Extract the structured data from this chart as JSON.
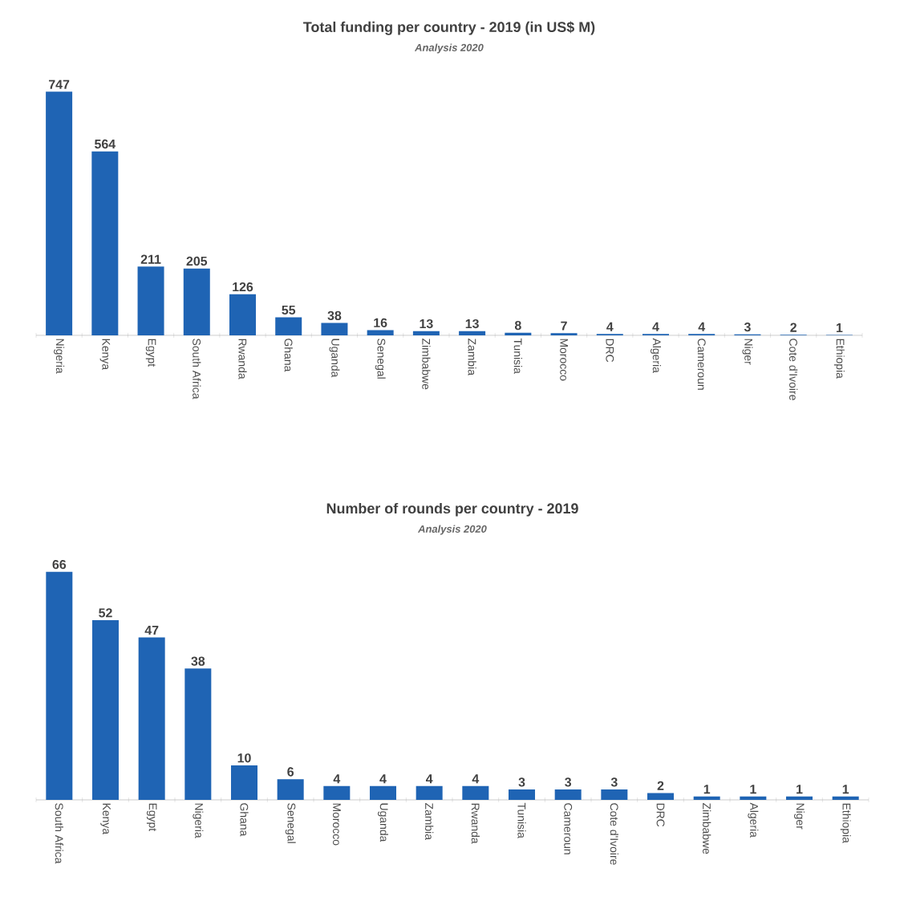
{
  "chart_data": [
    {
      "type": "bar",
      "title": "Total funding per country - 2019 (in US$ M)",
      "subtitle": "Analysis 2020",
      "categories": [
        "Nigeria",
        "Kenya",
        "Egypt",
        "South Africa",
        "Rwanda",
        "Ghana",
        "Uganda",
        "Senegal",
        "Zimbabwe",
        "Zambia",
        "Tunisia",
        "Morocco",
        "DRC",
        "Algeria",
        "Cameroun",
        "Niger",
        "Cote d'Ivoire",
        "Ethiopia"
      ],
      "values": [
        747,
        564,
        211,
        205,
        126,
        55,
        38,
        16,
        13,
        13,
        8,
        7,
        4,
        4,
        4,
        3,
        2,
        1
      ],
      "color": "#1f64b4",
      "data_labels": true
    },
    {
      "type": "bar",
      "title": "Number of rounds per country - 2019",
      "subtitle": "Analysis 2020",
      "categories": [
        "South Africa",
        "Kenya",
        "Egypt",
        "Nigeria",
        "Ghana",
        "Senegal",
        "Morocco",
        "Uganda",
        "Zambia",
        "Rwanda",
        "Tunisia",
        "Cameroun",
        "Cote d'Ivoire",
        "DRC",
        "Zimbabwe",
        "Algeria",
        "Niger",
        "Ethiopia"
      ],
      "values": [
        66,
        52,
        47,
        38,
        10,
        6,
        4,
        4,
        4,
        4,
        3,
        3,
        3,
        2,
        1,
        1,
        1,
        1
      ],
      "color": "#1f64b4",
      "data_labels": true
    }
  ]
}
